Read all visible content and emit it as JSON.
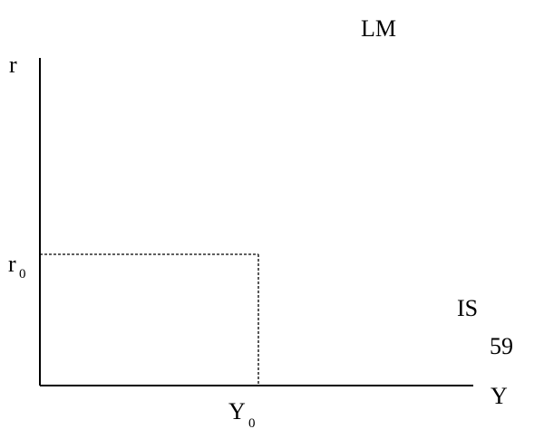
{
  "diagram": {
    "curves": {
      "lm_label": "LM",
      "is_label": "IS"
    },
    "axes": {
      "y_axis_label": "r",
      "x_axis_label": "Y"
    },
    "equilibrium": {
      "r_symbol": "r",
      "r_subscript": "0",
      "y_symbol": "Y",
      "y_subscript": "0"
    },
    "page_number": "59"
  }
}
